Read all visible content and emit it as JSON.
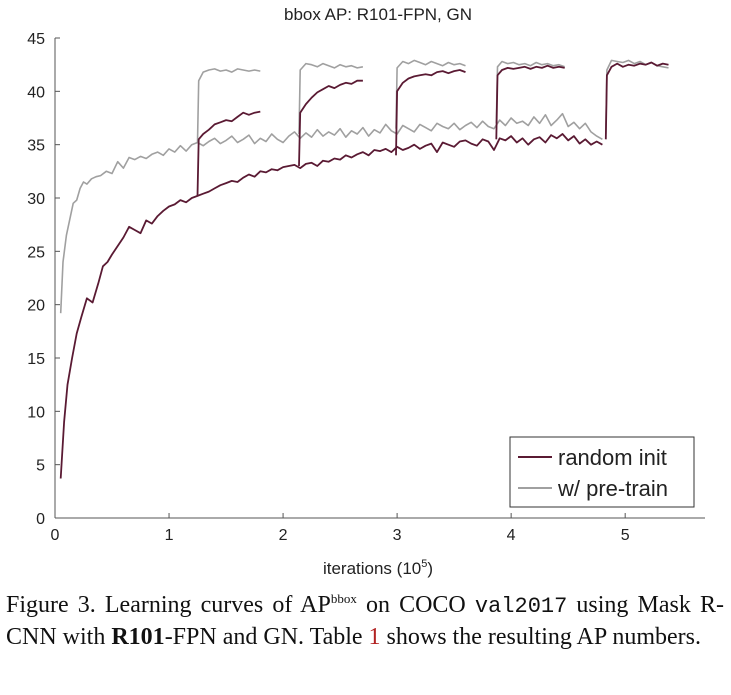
{
  "chart_data": {
    "type": "line",
    "title": "bbox AP: R101-FPN, GN",
    "xlabel": "iterations (10",
    "xlabel_sup": "5",
    "xlabel_close": ")",
    "ylabel": "",
    "xlim": [
      0,
      5.7
    ],
    "ylim": [
      0,
      45
    ],
    "xticks": [
      0,
      1,
      2,
      3,
      4,
      5
    ],
    "yticks": [
      0,
      5,
      10,
      15,
      20,
      25,
      30,
      35,
      40,
      45
    ],
    "grid": false,
    "legend_position": "bottom-right",
    "series": [
      {
        "name": "random init",
        "color": "#5a1a33",
        "segments": [
          {
            "x": [
              0.05,
              0.08,
              0.11,
              0.15,
              0.19,
              0.23,
              0.28,
              0.33,
              0.38,
              0.42,
              0.46,
              0.5,
              0.55,
              0.6,
              0.65,
              0.7,
              0.75,
              0.8,
              0.85,
              0.9,
              0.95,
              1.0,
              1.05,
              1.1,
              1.15,
              1.2,
              1.25,
              1.3,
              1.35,
              1.4,
              1.45,
              1.5,
              1.55,
              1.6,
              1.65,
              1.7,
              1.75,
              1.8,
              1.85,
              1.9,
              1.95,
              2.0,
              2.05,
              2.1,
              2.15,
              2.2,
              2.25,
              2.3,
              2.35,
              2.4,
              2.45,
              2.5,
              2.55,
              2.6,
              2.65,
              2.7,
              2.75,
              2.8,
              2.85,
              2.9,
              2.95,
              3.0,
              3.05,
              3.1,
              3.15,
              3.2,
              3.25,
              3.3,
              3.35,
              3.4,
              3.45,
              3.5,
              3.55,
              3.6,
              3.65,
              3.7,
              3.75,
              3.8,
              3.85,
              3.9,
              3.95,
              4.0,
              4.05,
              4.1,
              4.15,
              4.2,
              4.25,
              4.3,
              4.35,
              4.4,
              4.45,
              4.5,
              4.55,
              4.6,
              4.65,
              4.7,
              4.75,
              4.8
            ],
            "y": [
              3.7,
              9.0,
              12.5,
              15.0,
              17.3,
              18.8,
              20.6,
              20.2,
              22.0,
              23.6,
              24.0,
              24.7,
              25.5,
              26.3,
              27.3,
              27.0,
              26.7,
              27.9,
              27.6,
              28.3,
              28.8,
              29.2,
              29.4,
              29.8,
              29.6,
              30.0,
              30.2,
              30.4,
              30.6,
              30.9,
              31.2,
              31.4,
              31.6,
              31.5,
              31.9,
              32.2,
              32.0,
              32.5,
              32.4,
              32.7,
              32.6,
              32.9,
              33.0,
              33.1,
              32.8,
              33.2,
              33.3,
              33.0,
              33.5,
              33.4,
              33.7,
              33.6,
              34.0,
              33.8,
              34.1,
              34.3,
              34.0,
              34.5,
              34.4,
              34.6,
              34.3,
              34.8,
              34.5,
              34.7,
              35.0,
              34.6,
              34.9,
              35.1,
              34.3,
              35.2,
              35.0,
              34.8,
              35.3,
              35.4,
              35.1,
              34.9,
              35.5,
              35.3,
              34.5,
              35.6,
              35.4,
              35.8,
              35.2,
              35.6,
              35.0,
              35.5,
              35.7,
              35.2,
              35.9,
              35.6,
              36.0,
              35.4,
              35.8,
              35.1,
              35.5,
              35.0,
              35.3,
              35.0
            ]
          },
          {
            "x": [
              1.25,
              1.26,
              1.3,
              1.35,
              1.4,
              1.45,
              1.5,
              1.55,
              1.6,
              1.65,
              1.7,
              1.75,
              1.8
            ],
            "y": [
              30.2,
              35.5,
              36.0,
              36.4,
              36.9,
              37.1,
              37.3,
              37.2,
              37.6,
              38.0,
              37.8,
              38.0,
              38.1
            ]
          },
          {
            "x": [
              2.14,
              2.15,
              2.2,
              2.25,
              2.3,
              2.35,
              2.4,
              2.45,
              2.5,
              2.55,
              2.6,
              2.65,
              2.7
            ],
            "y": [
              33.0,
              38.0,
              38.8,
              39.4,
              39.9,
              40.2,
              40.5,
              40.3,
              40.6,
              40.8,
              40.7,
              41.0,
              41.0
            ]
          },
          {
            "x": [
              2.99,
              3.0,
              3.05,
              3.1,
              3.15,
              3.2,
              3.25,
              3.3,
              3.35,
              3.4,
              3.45,
              3.5,
              3.55,
              3.6
            ],
            "y": [
              34.0,
              40.0,
              40.8,
              41.2,
              41.4,
              41.5,
              41.6,
              41.5,
              41.8,
              41.9,
              41.7,
              41.9,
              42.0,
              41.8
            ]
          },
          {
            "x": [
              3.87,
              3.88,
              3.92,
              3.97,
              4.02,
              4.07,
              4.12,
              4.17,
              4.22,
              4.27,
              4.32,
              4.37,
              4.42,
              4.47
            ],
            "y": [
              35.5,
              41.5,
              42.0,
              42.2,
              42.1,
              42.2,
              42.3,
              42.1,
              42.3,
              42.2,
              42.4,
              42.2,
              42.3,
              42.2
            ]
          },
          {
            "x": [
              4.83,
              4.84,
              4.88,
              4.93,
              4.98,
              5.03,
              5.08,
              5.13,
              5.18,
              5.23,
              5.28,
              5.33,
              5.38
            ],
            "y": [
              35.5,
              41.5,
              42.3,
              42.6,
              42.3,
              42.5,
              42.4,
              42.6,
              42.5,
              42.7,
              42.4,
              42.6,
              42.5
            ]
          }
        ]
      },
      {
        "name": "w/ pre-train",
        "color": "#a0a0a0",
        "segments": [
          {
            "x": [
              0.05,
              0.07,
              0.1,
              0.13,
              0.16,
              0.19,
              0.22,
              0.25,
              0.28,
              0.32,
              0.36,
              0.4,
              0.45,
              0.5,
              0.55,
              0.6,
              0.65,
              0.7,
              0.75,
              0.8,
              0.85,
              0.9,
              0.95,
              1.0,
              1.05,
              1.1,
              1.15,
              1.2,
              1.25,
              1.3,
              1.35,
              1.4,
              1.45,
              1.5,
              1.55,
              1.6,
              1.65,
              1.7,
              1.75,
              1.8,
              1.85,
              1.9,
              1.95,
              2.0,
              2.05,
              2.1,
              2.15,
              2.2,
              2.25,
              2.3,
              2.35,
              2.4,
              2.45,
              2.5,
              2.55,
              2.6,
              2.65,
              2.7,
              2.75,
              2.8,
              2.85,
              2.9,
              2.95,
              3.0,
              3.05,
              3.1,
              3.15,
              3.2,
              3.25,
              3.3,
              3.35,
              3.4,
              3.45,
              3.5,
              3.55,
              3.6,
              3.65,
              3.7,
              3.75,
              3.8,
              3.85,
              3.9,
              3.95,
              4.0,
              4.05,
              4.1,
              4.15,
              4.2,
              4.25,
              4.3,
              4.35,
              4.4,
              4.45,
              4.5,
              4.55,
              4.6,
              4.65,
              4.7,
              4.75,
              4.8
            ],
            "y": [
              19.2,
              24.0,
              26.5,
              28.0,
              29.5,
              29.8,
              30.9,
              31.5,
              31.3,
              31.8,
              32.0,
              32.1,
              32.5,
              32.3,
              33.4,
              32.8,
              33.8,
              33.6,
              33.9,
              33.7,
              34.1,
              34.3,
              34.0,
              34.6,
              34.3,
              34.9,
              34.4,
              35.0,
              35.2,
              34.9,
              35.3,
              35.6,
              35.1,
              35.4,
              35.8,
              35.2,
              35.5,
              35.9,
              35.1,
              35.6,
              35.3,
              36.0,
              35.5,
              35.2,
              35.8,
              36.2,
              35.6,
              36.1,
              35.7,
              36.4,
              35.8,
              36.2,
              35.9,
              36.5,
              35.7,
              36.3,
              36.0,
              36.6,
              35.8,
              36.4,
              36.1,
              36.9,
              36.3,
              36.0,
              36.8,
              36.5,
              36.2,
              36.9,
              36.6,
              36.3,
              37.0,
              36.7,
              36.5,
              37.0,
              36.4,
              36.8,
              37.1,
              36.6,
              37.2,
              36.7,
              36.5,
              37.3,
              36.8,
              37.5,
              37.0,
              37.2,
              36.8,
              37.6,
              37.0,
              37.8,
              36.8,
              37.3,
              37.9,
              36.7,
              37.1,
              36.5,
              37.0,
              36.2,
              35.8,
              35.5
            ]
          },
          {
            "x": [
              1.25,
              1.26,
              1.3,
              1.35,
              1.4,
              1.45,
              1.5,
              1.55,
              1.6,
              1.65,
              1.7,
              1.75,
              1.8
            ],
            "y": [
              35.2,
              41.0,
              41.8,
              42.0,
              42.1,
              41.9,
              42.0,
              41.8,
              42.1,
              42.0,
              41.9,
              42.0,
              41.9
            ]
          },
          {
            "x": [
              2.14,
              2.15,
              2.2,
              2.25,
              2.3,
              2.35,
              2.4,
              2.45,
              2.5,
              2.55,
              2.6,
              2.65,
              2.7
            ],
            "y": [
              36.0,
              42.0,
              42.6,
              42.5,
              42.3,
              42.6,
              42.4,
              42.2,
              42.5,
              42.3,
              42.4,
              42.2,
              42.3
            ]
          },
          {
            "x": [
              2.99,
              3.0,
              3.05,
              3.1,
              3.15,
              3.2,
              3.25,
              3.3,
              3.35,
              3.4,
              3.45,
              3.5,
              3.55,
              3.6
            ],
            "y": [
              36.5,
              42.2,
              42.8,
              42.6,
              42.9,
              42.7,
              42.5,
              42.8,
              42.6,
              42.4,
              42.7,
              42.5,
              42.6,
              42.4
            ]
          },
          {
            "x": [
              3.87,
              3.88,
              3.92,
              3.97,
              4.02,
              4.07,
              4.12,
              4.17,
              4.22,
              4.27,
              4.32,
              4.37,
              4.42,
              4.47
            ],
            "y": [
              37.0,
              42.3,
              42.8,
              42.6,
              42.7,
              42.5,
              42.6,
              42.4,
              42.7,
              42.5,
              42.6,
              42.4,
              42.5,
              42.3
            ]
          },
          {
            "x": [
              4.83,
              4.84,
              4.88,
              4.93,
              4.98,
              5.03,
              5.08,
              5.13,
              5.18,
              5.23,
              5.28,
              5.33,
              5.38
            ],
            "y": [
              36.0,
              42.0,
              42.9,
              42.8,
              42.7,
              42.9,
              42.6,
              42.8,
              42.5,
              42.7,
              42.4,
              42.3,
              42.2
            ]
          }
        ]
      }
    ]
  },
  "caption": {
    "pre": "Figure 3. Learning curves of AP",
    "sup": "bbox",
    "mid1": " on COCO ",
    "code": "val2017",
    "mid2": " using Mask R-CNN with ",
    "bold": "R101",
    "mid3": "-FPN and GN. Table ",
    "ref": "1",
    "post": " shows the resulting AP numbers."
  }
}
